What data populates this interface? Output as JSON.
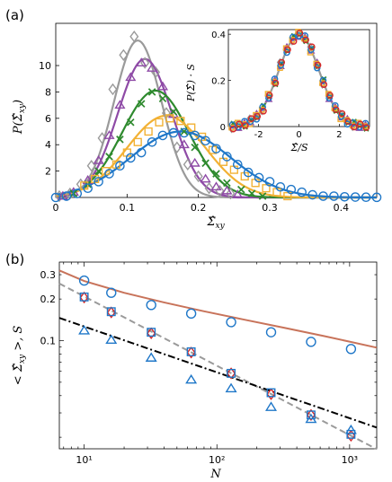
{
  "chart_data": [
    {
      "panel": "(a)",
      "type": "line",
      "xlabel": "Σ̂xy",
      "ylabel": "P(Σ̂xy)",
      "xlim": [
        0,
        0.45
      ],
      "ylim": [
        0,
        13.2
      ],
      "xticks": [
        0,
        0.1,
        0.2,
        0.3,
        0.4
      ],
      "yticks": [
        2,
        4,
        6,
        8,
        10
      ],
      "xticklabels": [
        "0",
        "0.1",
        "0.2",
        "0.3",
        "0.4"
      ],
      "yticklabels": [
        "2",
        "4",
        "6",
        "8",
        "10"
      ],
      "grid": false,
      "series": [
        {
          "color": "#9a9a9a",
          "marker": "diamond",
          "mu": 0.115,
          "sigma": 0.0335,
          "amp": 11.9,
          "x": [
            0.005,
            0.02,
            0.035,
            0.05,
            0.065,
            0.08,
            0.095,
            0.11,
            0.125,
            0.14,
            0.155,
            0.17,
            0.185,
            0.2,
            0.215,
            0.23,
            0.245
          ],
          "y": [
            0.1,
            0.3,
            1.0,
            2.4,
            4.5,
            8.2,
            10.8,
            12.2,
            10.2,
            9.5,
            6.4,
            3.8,
            2.5,
            1.6,
            0.7,
            0.5,
            0.3
          ]
        },
        {
          "color": "#8e4aa6",
          "marker": "triangle",
          "mu": 0.125,
          "sigma": 0.038,
          "amp": 10.5,
          "x": [
            0.01,
            0.025,
            0.045,
            0.06,
            0.075,
            0.09,
            0.105,
            0.12,
            0.135,
            0.15,
            0.165,
            0.18,
            0.195,
            0.21,
            0.225,
            0.24,
            0.255
          ],
          "y": [
            0.1,
            0.4,
            1.3,
            2.8,
            4.7,
            7.0,
            9.1,
            10.2,
            9.8,
            8.4,
            6.3,
            4.0,
            2.6,
            1.4,
            0.8,
            0.5,
            0.2
          ]
        },
        {
          "color": "#2e8a2e",
          "marker": "x",
          "mu": 0.14,
          "sigma": 0.047,
          "amp": 8.1,
          "x": [
            0.025,
            0.045,
            0.06,
            0.075,
            0.09,
            0.105,
            0.12,
            0.135,
            0.15,
            0.165,
            0.18,
            0.195,
            0.21,
            0.225,
            0.24,
            0.26,
            0.275,
            0.29
          ],
          "y": [
            0.3,
            1.0,
            2.0,
            3.1,
            4.4,
            5.7,
            7.1,
            8.0,
            7.5,
            6.5,
            5.0,
            3.8,
            2.6,
            1.8,
            1.1,
            0.6,
            0.3,
            0.1
          ]
        },
        {
          "color": "#f2b134",
          "marker": "square",
          "mu": 0.155,
          "sigma": 0.055,
          "amp": 6.2,
          "x": [
            0.04,
            0.055,
            0.07,
            0.085,
            0.1,
            0.115,
            0.13,
            0.145,
            0.16,
            0.175,
            0.19,
            0.205,
            0.22,
            0.235,
            0.25,
            0.265,
            0.28,
            0.295,
            0.31,
            0.325
          ],
          "y": [
            0.9,
            1.4,
            2.0,
            2.5,
            3.4,
            4.2,
            5.0,
            5.7,
            6.0,
            5.8,
            5.3,
            4.6,
            3.6,
            2.7,
            2.1,
            1.6,
            1.1,
            0.7,
            0.4,
            0.1
          ]
        },
        {
          "color": "#1f77c8",
          "marker": "circle",
          "mu": 0.175,
          "sigma": 0.07,
          "amp": 5.0,
          "x": [
            0.0,
            0.015,
            0.03,
            0.045,
            0.06,
            0.075,
            0.09,
            0.105,
            0.12,
            0.135,
            0.15,
            0.165,
            0.18,
            0.195,
            0.21,
            0.225,
            0.24,
            0.255,
            0.27,
            0.285,
            0.3,
            0.315,
            0.33,
            0.345,
            0.36,
            0.375,
            0.39,
            0.405,
            0.42,
            0.435,
            0.45
          ],
          "y": [
            0.0,
            0.1,
            0.3,
            0.7,
            1.2,
            1.8,
            2.4,
            3.0,
            3.4,
            4.2,
            4.7,
            4.9,
            4.9,
            4.7,
            4.3,
            3.7,
            3.1,
            2.5,
            1.9,
            1.5,
            1.2,
            0.8,
            0.6,
            0.4,
            0.2,
            0.1,
            0.1,
            0.05,
            0.03,
            0.02,
            0.01
          ]
        }
      ]
    },
    {
      "panel": "(a) inset",
      "type": "scatter",
      "xlabel": "Σ̂/S",
      "ylabel": "P(Σ̂)·S",
      "xlim": [
        -3.5,
        3.5
      ],
      "ylim": [
        0,
        0.42
      ],
      "xticks": [
        -2,
        0,
        2
      ],
      "yticks": [
        0,
        0.2,
        0.4
      ],
      "xticklabels": [
        "-2",
        "0",
        "2"
      ],
      "yticklabels": [
        "0",
        "0.2",
        "0.4"
      ],
      "curve": {
        "color": "#9a9a9a",
        "type": "standard-normal"
      },
      "series_colors": [
        "#9a9a9a",
        "#8e4aa6",
        "#2e8a2e",
        "#f2b134",
        "#1f77c8",
        "#d62728"
      ],
      "markers": [
        "diamond",
        "triangle",
        "x",
        "square",
        "circle",
        "circle"
      ],
      "x": [
        -3.3,
        -3.0,
        -2.7,
        -2.4,
        -2.1,
        -1.8,
        -1.5,
        -1.2,
        -0.9,
        -0.6,
        -0.3,
        0.0,
        0.3,
        0.6,
        0.9,
        1.2,
        1.5,
        1.8,
        2.1,
        2.4,
        2.7,
        3.0,
        3.3
      ]
    },
    {
      "panel": "(b)",
      "type": "scatter",
      "xlabel": "N",
      "ylabel": "< Σ̂xy >, S",
      "xscale": "log",
      "yscale": "log",
      "xlim": [
        6.5,
        1600
      ],
      "ylim": [
        0.0165,
        0.37
      ],
      "xticks": [
        10,
        100,
        1000
      ],
      "xticklabels": [
        "10¹",
        "10²",
        "10³"
      ],
      "yticks": [
        0.1,
        0.2,
        0.3
      ],
      "yticklabels": [
        "0.1",
        "0.2",
        "0.3"
      ],
      "grid": false,
      "series": [
        {
          "color": "#1f77c8",
          "marker": "circle",
          "x": [
            10,
            16,
            32,
            64,
            128,
            256,
            512,
            1024
          ],
          "y": [
            0.272,
            0.222,
            0.181,
            0.157,
            0.136,
            0.115,
            0.098,
            0.087
          ]
        },
        {
          "color": "#d62728",
          "marker": "diamond",
          "x": [
            10,
            16,
            32,
            64,
            128,
            256,
            512,
            1024
          ],
          "y": [
            0.205,
            0.16,
            0.113,
            0.082,
            0.058,
            0.041,
            0.029,
            0.0205
          ]
        },
        {
          "color": "#1f77c8",
          "marker": "square",
          "x": [
            10,
            16,
            32,
            64,
            128,
            256,
            512,
            1024
          ],
          "y": [
            0.207,
            0.162,
            0.115,
            0.083,
            0.058,
            0.042,
            0.029,
            0.021
          ]
        },
        {
          "color": "#1f77c8",
          "marker": "triangle",
          "x": [
            10,
            16,
            32,
            64,
            128,
            256,
            512,
            1024
          ],
          "y": [
            0.118,
            0.101,
            0.075,
            0.052,
            0.045,
            0.033,
            0.027,
            0.0225
          ]
        }
      ],
      "fits": [
        {
          "color": "#c8735a",
          "style": "solid",
          "x": [
            6.5,
            10,
            20,
            40,
            80,
            160,
            320,
            640,
            1600
          ],
          "y": [
            0.322,
            0.27,
            0.222,
            0.189,
            0.163,
            0.142,
            0.124,
            0.108,
            0.089
          ]
        },
        {
          "color": "#9a9a9a",
          "style": "dashed",
          "x": [
            6.5,
            1600
          ],
          "y": [
            0.259,
            0.0164
          ]
        },
        {
          "color": "#000000",
          "style": "dashdot",
          "x": [
            6.5,
            1600
          ],
          "y": [
            0.146,
            0.0235
          ]
        }
      ]
    }
  ],
  "panels": {
    "a": {
      "label": "(a)"
    },
    "b": {
      "label": "(b)"
    }
  }
}
